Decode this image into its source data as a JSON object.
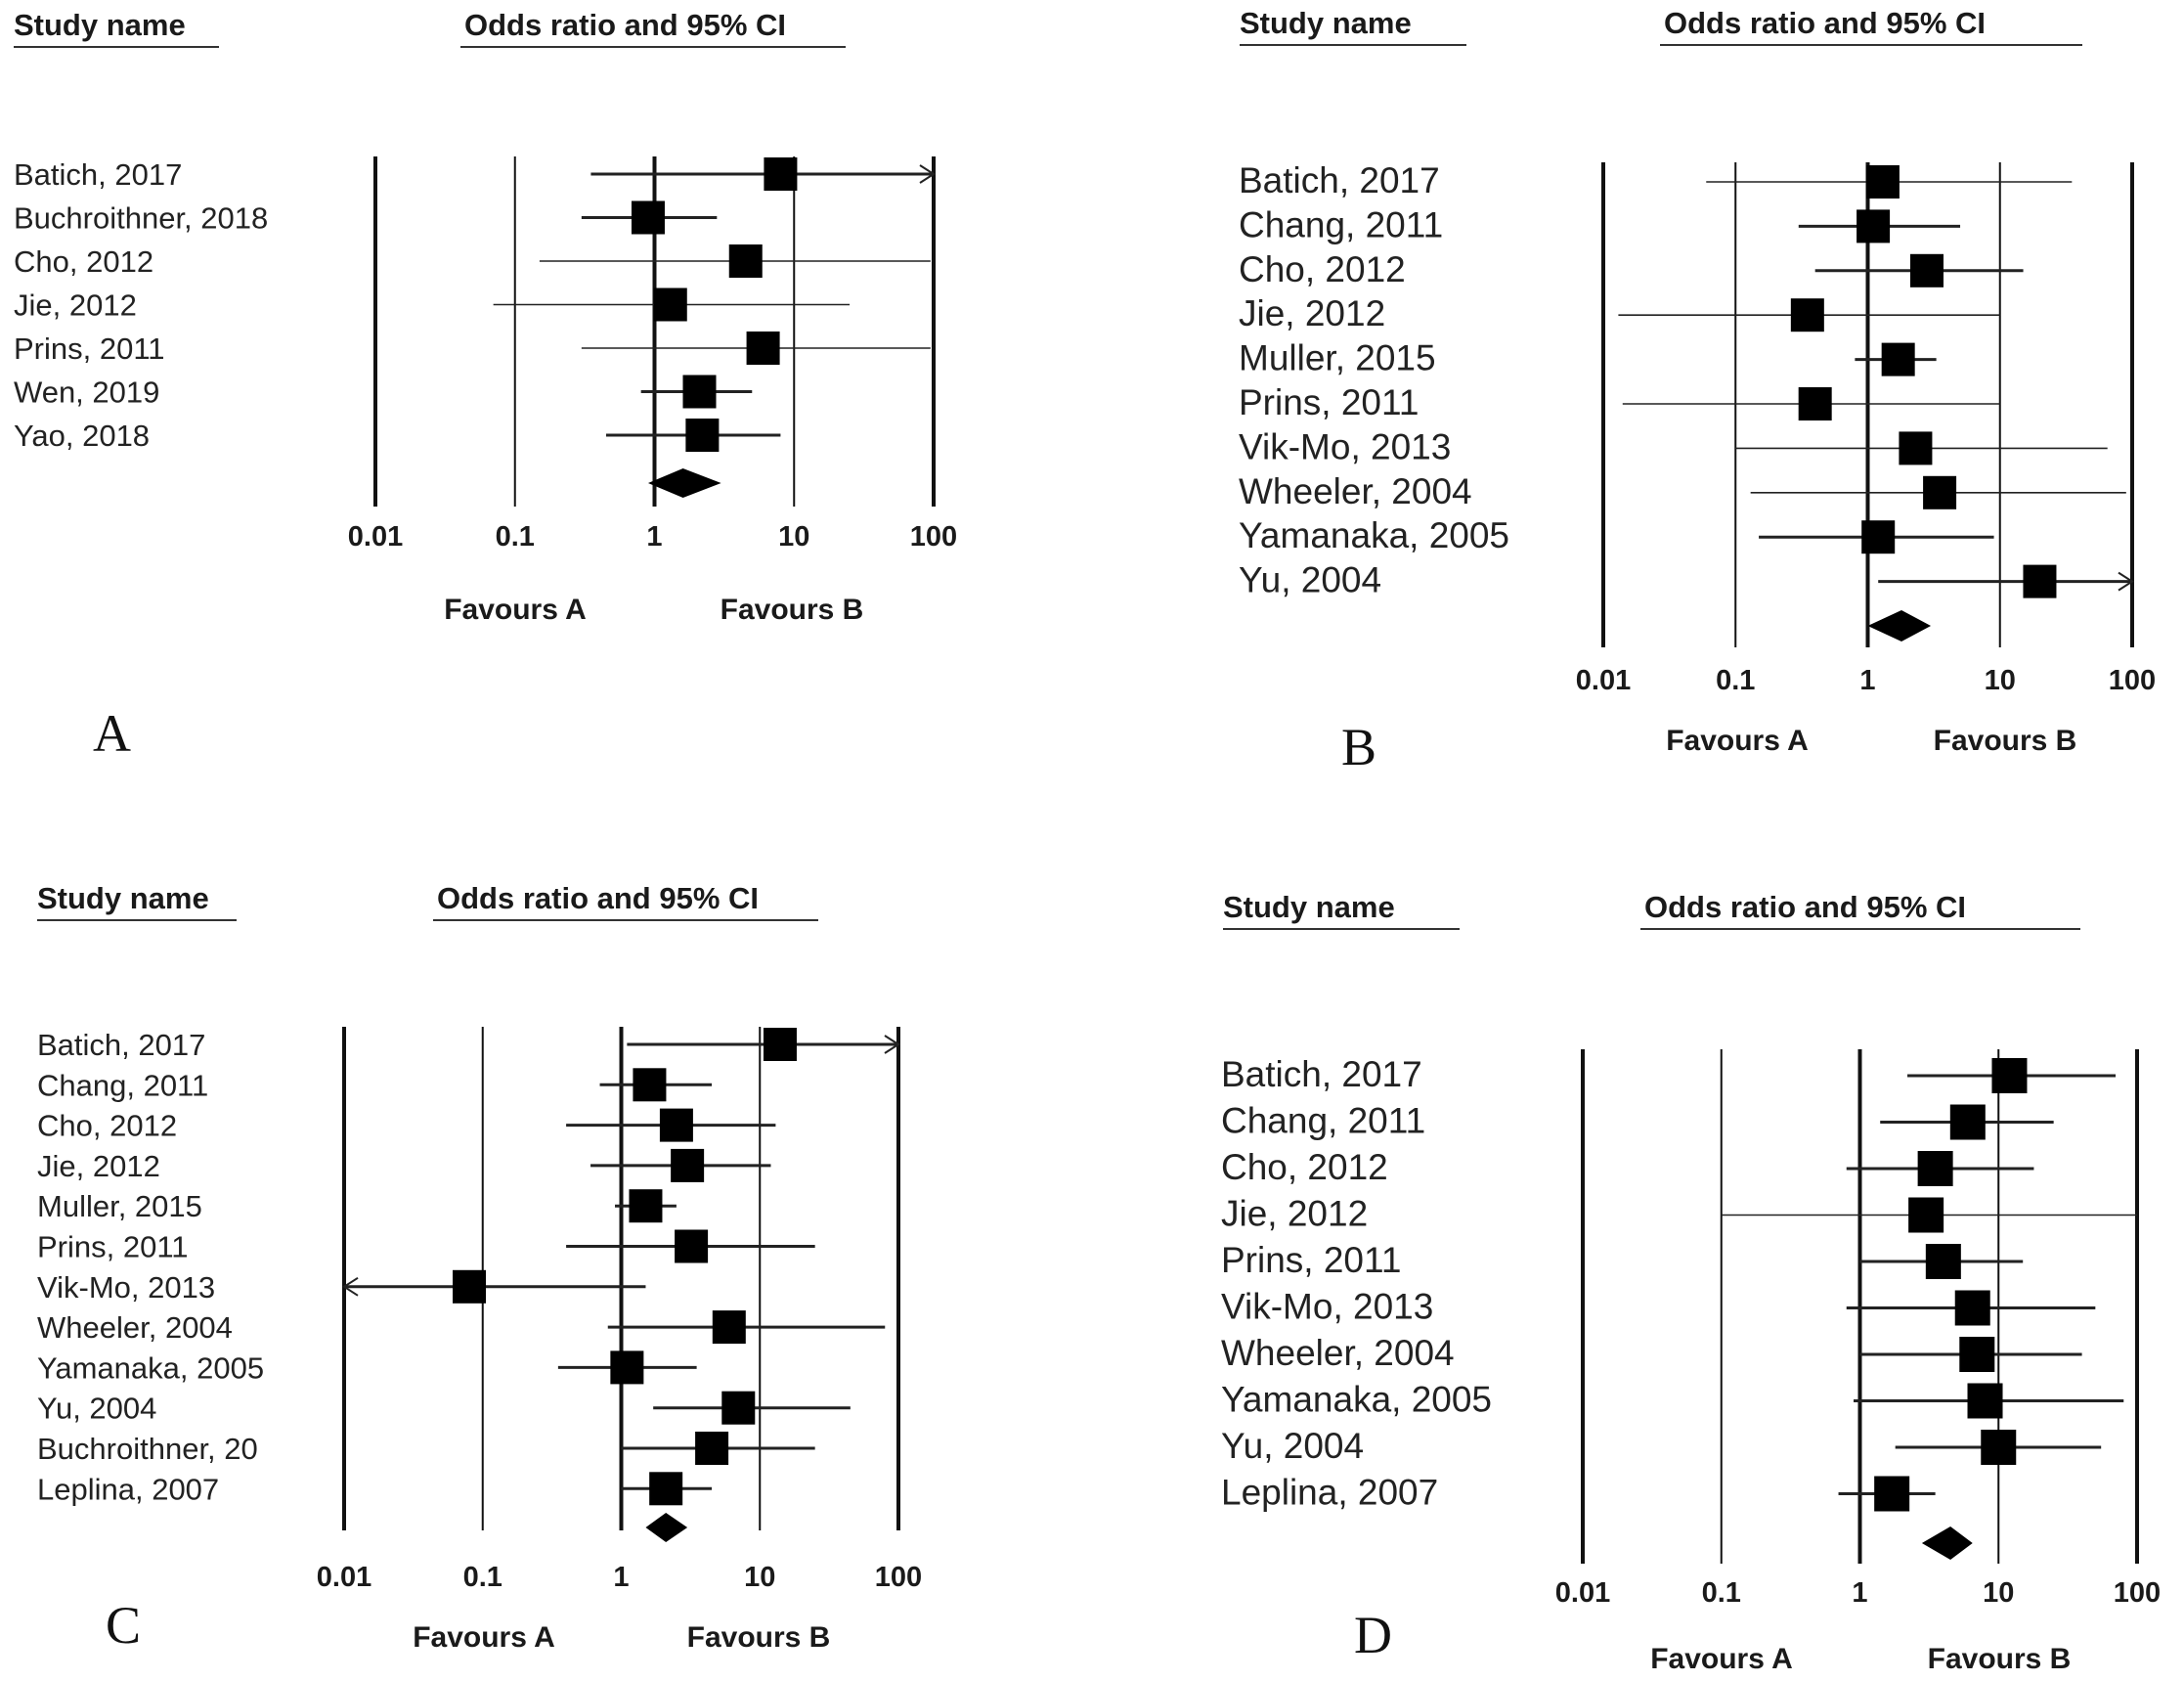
{
  "chart_data": [
    {
      "type": "forest",
      "panel_label": "A",
      "study_header": "Study name",
      "effect_header": "Odds ratio and 95% CI",
      "xscale": "log",
      "xlim": [
        0.01,
        100
      ],
      "ticks": [
        "0.01",
        "0.1",
        "1",
        "10",
        "100"
      ],
      "favours_left": "Favours A",
      "favours_right": "Favours B",
      "studies": [
        {
          "name": "Batich, 2017",
          "or": 8.0,
          "lo": 0.35,
          "hi": 100,
          "arrow_right": true
        },
        {
          "name": "Buchroithner, 2018",
          "or": 0.9,
          "lo": 0.3,
          "hi": 2.8
        },
        {
          "name": "Cho, 2012",
          "or": 4.5,
          "lo": 0.15,
          "hi": 95
        },
        {
          "name": "Jie, 2012",
          "or": 1.3,
          "lo": 0.07,
          "hi": 25
        },
        {
          "name": "Prins, 2011",
          "or": 6.0,
          "lo": 0.3,
          "hi": 95
        },
        {
          "name": "Wen, 2019",
          "or": 2.1,
          "lo": 0.8,
          "hi": 5.0
        },
        {
          "name": "Yao, 2018",
          "or": 2.2,
          "lo": 0.45,
          "hi": 8.0
        }
      ],
      "pooled": {
        "or": 1.6,
        "lo": 0.9,
        "hi": 3.0
      }
    },
    {
      "type": "forest",
      "panel_label": "B",
      "study_header": "Study name",
      "effect_header": "Odds ratio and 95% CI",
      "xscale": "log",
      "xlim": [
        0.01,
        100
      ],
      "ticks": [
        "0.01",
        "0.1",
        "1",
        "10",
        "100"
      ],
      "favours_left": "Favours A",
      "favours_right": "Favours B",
      "studies": [
        {
          "name": "Batich, 2017",
          "or": 1.3,
          "lo": 0.06,
          "hi": 35
        },
        {
          "name": "Chang, 2011",
          "or": 1.1,
          "lo": 0.3,
          "hi": 5.0
        },
        {
          "name": "Cho, 2012",
          "or": 2.8,
          "lo": 0.4,
          "hi": 15
        },
        {
          "name": "Jie, 2012",
          "or": 0.35,
          "lo": 0.013,
          "hi": 10
        },
        {
          "name": "Muller, 2015",
          "or": 1.7,
          "lo": 0.8,
          "hi": 3.3
        },
        {
          "name": "Prins, 2011",
          "or": 0.4,
          "lo": 0.014,
          "hi": 10
        },
        {
          "name": "Vik-Mo, 2013",
          "or": 2.3,
          "lo": 0.1,
          "hi": 65
        },
        {
          "name": "Wheeler, 2004",
          "or": 3.5,
          "lo": 0.13,
          "hi": 90
        },
        {
          "name": "Yamanaka, 2005",
          "or": 1.2,
          "lo": 0.15,
          "hi": 9.0
        },
        {
          "name": "Yu, 2004",
          "or": 20,
          "lo": 1.2,
          "hi": 100,
          "arrow_right": true
        }
      ],
      "pooled": {
        "or": 1.8,
        "lo": 1.0,
        "hi": 3.0
      }
    },
    {
      "type": "forest",
      "panel_label": "C",
      "study_header": "Study name",
      "effect_header": "Odds ratio and 95% CI",
      "xscale": "log",
      "xlim": [
        0.01,
        100
      ],
      "ticks": [
        "0.01",
        "0.1",
        "1",
        "10",
        "100"
      ],
      "favours_left": "Favours A",
      "favours_right": "Favours B",
      "studies": [
        {
          "name": "Batich, 2017",
          "or": 14,
          "lo": 1.1,
          "hi": 100,
          "arrow_right": true
        },
        {
          "name": "Chang, 2011",
          "or": 1.6,
          "lo": 0.7,
          "hi": 4.5
        },
        {
          "name": "Cho, 2012",
          "or": 2.5,
          "lo": 0.4,
          "hi": 13
        },
        {
          "name": "Jie, 2012",
          "or": 3.0,
          "lo": 0.6,
          "hi": 12
        },
        {
          "name": "Muller, 2015",
          "or": 1.5,
          "lo": 0.9,
          "hi": 2.5
        },
        {
          "name": "Prins, 2011",
          "or": 3.2,
          "lo": 0.4,
          "hi": 25
        },
        {
          "name": "Vik-Mo, 2013",
          "or": 0.08,
          "lo": 0.01,
          "hi": 1.5,
          "arrow_left": true
        },
        {
          "name": "Wheeler, 2004",
          "or": 6.0,
          "lo": 0.8,
          "hi": 80
        },
        {
          "name": "Yamanaka, 2005",
          "or": 1.1,
          "lo": 0.35,
          "hi": 3.5
        },
        {
          "name": "Yu, 2004",
          "or": 7.0,
          "lo": 1.7,
          "hi": 45
        },
        {
          "name": "Buchroithner, 20",
          "or": 4.5,
          "lo": 1.0,
          "hi": 25
        },
        {
          "name": "Leplina, 2007",
          "or": 2.1,
          "lo": 1.0,
          "hi": 4.5
        }
      ],
      "pooled": {
        "or": 2.1,
        "lo": 1.5,
        "hi": 3.0
      }
    },
    {
      "type": "forest",
      "panel_label": "D",
      "study_header": "Study name",
      "effect_header": "Odds ratio and 95% CI",
      "xscale": "log",
      "xlim": [
        0.01,
        100
      ],
      "ticks": [
        "0.01",
        "0.1",
        "1",
        "10",
        "100"
      ],
      "favours_left": "Favours A",
      "favours_right": "Favours B",
      "studies": [
        {
          "name": "Batich, 2017",
          "or": 12,
          "lo": 2.2,
          "hi": 70
        },
        {
          "name": "Chang, 2011",
          "or": 6.0,
          "lo": 1.4,
          "hi": 25
        },
        {
          "name": "Cho, 2012",
          "or": 3.5,
          "lo": 0.8,
          "hi": 18
        },
        {
          "name": "Jie, 2012",
          "or": 3.0,
          "lo": 0.1,
          "hi": 100
        },
        {
          "name": "Prins, 2011",
          "or": 4.0,
          "lo": 1.0,
          "hi": 15
        },
        {
          "name": "Vik-Mo, 2013",
          "or": 6.5,
          "lo": 0.8,
          "hi": 50
        },
        {
          "name": "Wheeler, 2004",
          "or": 7.0,
          "lo": 1.0,
          "hi": 40
        },
        {
          "name": "Yamanaka, 2005",
          "or": 8.0,
          "lo": 0.9,
          "hi": 80
        },
        {
          "name": "Yu, 2004",
          "or": 10,
          "lo": 1.8,
          "hi": 55
        },
        {
          "name": "Leplina, 2007",
          "or": 1.7,
          "lo": 0.7,
          "hi": 3.5
        }
      ],
      "pooled": {
        "or": 4.5,
        "lo": 2.8,
        "hi": 6.5
      }
    }
  ]
}
